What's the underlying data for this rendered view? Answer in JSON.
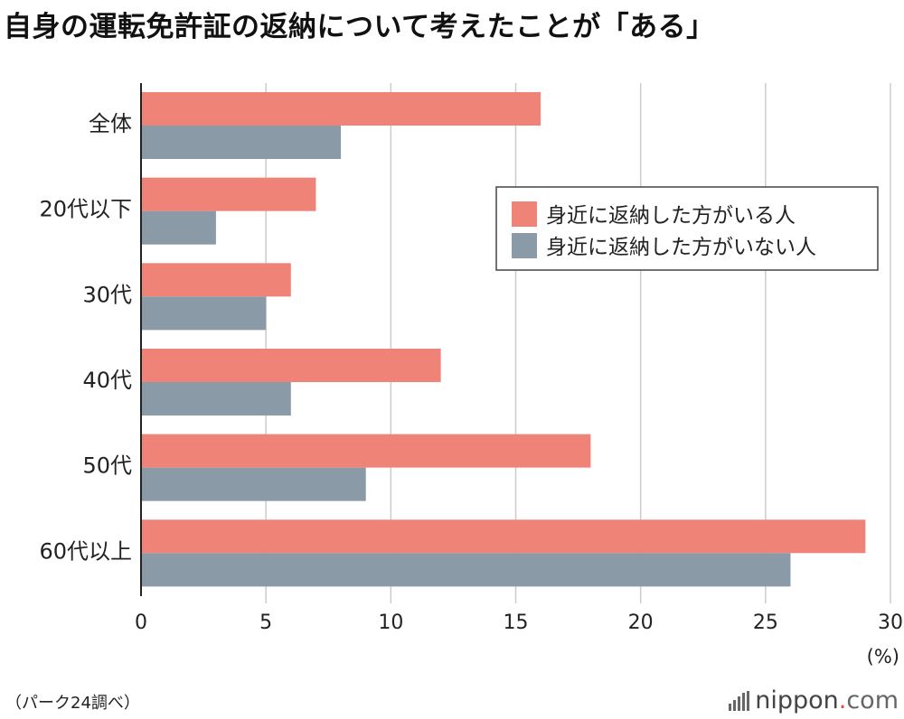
{
  "title": "自身の運転免許証の返納について考えたことが「ある」",
  "source": "（パーク24調べ）",
  "brand": {
    "name": "nippon",
    "dot": ".",
    "tld": "com"
  },
  "colors": {
    "series1": "#f08378",
    "series2": "#8a9aa6",
    "grid": "#cccccc",
    "axis": "#222222"
  },
  "chart_data": {
    "type": "bar",
    "orientation": "horizontal",
    "categories": [
      "全体",
      "20代以下",
      "30代",
      "40代",
      "50代",
      "60代以上"
    ],
    "series": [
      {
        "name": "身近に返納した方がいる人",
        "values": [
          16,
          7,
          6,
          12,
          18,
          29
        ]
      },
      {
        "name": "身近に返納した方がいない人",
        "values": [
          8,
          3,
          5,
          6,
          9,
          26
        ]
      }
    ],
    "xlim": [
      0,
      30
    ],
    "xticks": [
      "0",
      "5",
      "10",
      "15",
      "20",
      "25",
      "30"
    ],
    "unit_label": "(%)",
    "grid": true,
    "legend_position": "top-right"
  }
}
